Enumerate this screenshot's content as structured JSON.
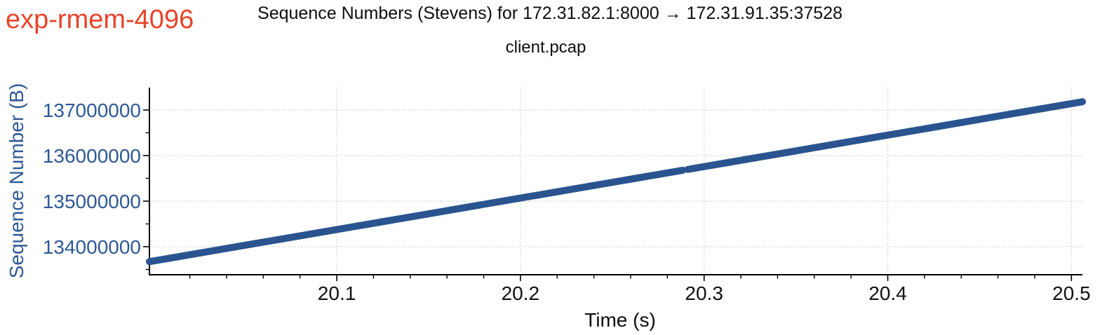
{
  "annotation": {
    "text": "exp-rmem-4096",
    "color": "#e8432a"
  },
  "colors": {
    "line": "#2a548f",
    "y_axis_text": "#2d5896",
    "x_axis_text": "#111111",
    "spine": "#000000",
    "grid": "#c8c8c8",
    "title_text": "#0e0e0e"
  },
  "chart_data": {
    "type": "scatter",
    "title": "Sequence Numbers (Stevens) for 172.31.82.1:8000 → 172.31.91.35:37528",
    "subtitle": "client.pcap",
    "xlabel": "Time (s)",
    "ylabel": "Sequence Number (B)",
    "xlim": [
      19.998,
      20.506
    ],
    "ylim": [
      133385000,
      137492000
    ],
    "x_ticks": {
      "values": [
        20.1,
        20.2,
        20.3,
        20.4,
        20.5
      ],
      "labels": [
        "20.1",
        "20.2",
        "20.3",
        "20.4",
        "20.5"
      ],
      "minor_step": 0.02
    },
    "y_ticks": {
      "values": [
        134000000,
        135000000,
        136000000,
        137000000
      ],
      "labels": [
        "134000000",
        "135000000",
        "136000000",
        "137000000"
      ],
      "minor_step": 500000
    },
    "grid": {
      "show": true,
      "style": "dotted",
      "on": "major-both"
    },
    "legend": {
      "show": false
    },
    "series": [
      {
        "name": "sequence-numbers",
        "color": "#2a548f",
        "line_width": 10,
        "segments": [
          [
            19.998,
            133672000,
            20.1787,
            134920000
          ],
          [
            20.1802,
            134931000,
            20.2884,
            135678000
          ],
          [
            20.2925,
            135706000,
            20.506,
            137182000
          ]
        ],
        "isolated_points": [
          [
            20.2912,
            135697000
          ]
        ]
      }
    ]
  }
}
